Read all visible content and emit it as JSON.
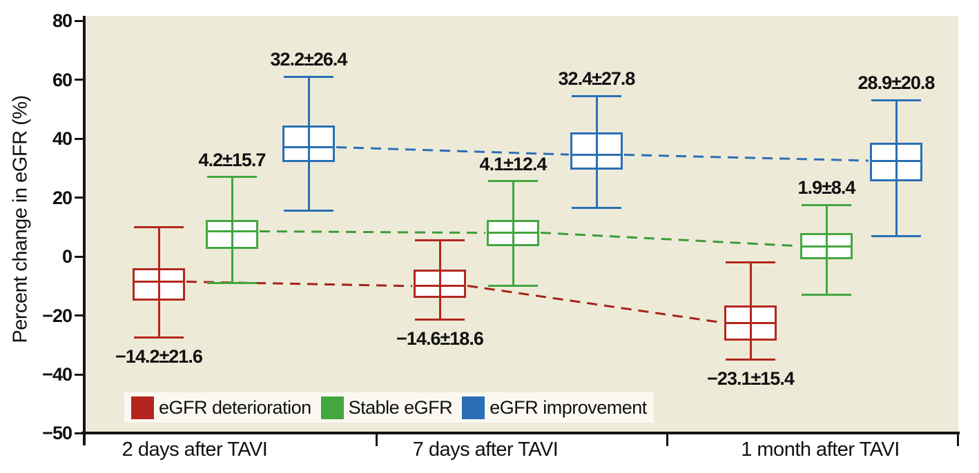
{
  "chart_data": {
    "type": "box",
    "title": "",
    "ylabel": "Percent change in eGFR (%)",
    "xlabel": "",
    "ylim": [
      -50,
      80
    ],
    "grid": false,
    "legend_position": "bottom-inside",
    "y_ticks": [
      {
        "label": "80",
        "value": 80
      },
      {
        "label": "60",
        "value": 60
      },
      {
        "label": "40",
        "value": 40
      },
      {
        "label": "20",
        "value": 20
      },
      {
        "label": "0",
        "value": 0
      },
      {
        "label": "−20",
        "value": -20
      },
      {
        "label": "−40",
        "value": -40
      },
      {
        "label": "−50",
        "value": -50
      }
    ],
    "categories": [
      "2 days after TAVI",
      "7 days after TAVI",
      "1 month after TAVI"
    ],
    "series": [
      {
        "name": "eGFR deterioration",
        "color": "#b4261d",
        "dash_color": "#a5221a",
        "label_position": "below",
        "mean_sd_labels": [
          "−14.2±21.6",
          "−14.6±18.6",
          "−23.1±15.4"
        ],
        "boxes": [
          {
            "whisker_high": 10,
            "q3": -4,
            "median": -8.5,
            "q1": -15,
            "whisker_low": -27.5
          },
          {
            "whisker_high": 5.5,
            "q3": -4.5,
            "median": -10,
            "q1": -14,
            "whisker_low": -21.5
          },
          {
            "whisker_high": -2,
            "q3": -16.5,
            "median": -22.5,
            "q1": -28.5,
            "whisker_low": -35
          }
        ]
      },
      {
        "name": "Stable eGFR",
        "color": "#43a63f",
        "dash_color": "#3d9c39",
        "label_position": "above",
        "mean_sd_labels": [
          "4.2±15.7",
          "4.1±12.4",
          "1.9±8.4"
        ],
        "boxes": [
          {
            "whisker_high": 27,
            "q3": 12.5,
            "median": 8.5,
            "q1": 2.5,
            "whisker_low": -9
          },
          {
            "whisker_high": 25.5,
            "q3": 12.5,
            "median": 8,
            "q1": 3.5,
            "whisker_low": -10
          },
          {
            "whisker_high": 17.5,
            "q3": 8,
            "median": 3.5,
            "q1": -1,
            "whisker_low": -13
          }
        ]
      },
      {
        "name": "eGFR improvement",
        "color": "#2a6fb5",
        "dash_color": "#2a6fb5",
        "label_position": "above",
        "mean_sd_labels": [
          "32.2±26.4",
          "32.4±27.8",
          "28.9±20.8"
        ],
        "boxes": [
          {
            "whisker_high": 61,
            "q3": 44.5,
            "median": 37,
            "q1": 32,
            "whisker_low": 15.5
          },
          {
            "whisker_high": 54.5,
            "q3": 42,
            "median": 34.5,
            "q1": 29.5,
            "whisker_low": 16.5
          },
          {
            "whisker_high": 53,
            "q3": 38.5,
            "median": 32.5,
            "q1": 25.5,
            "whisker_low": 7
          }
        ]
      }
    ],
    "colors": {
      "plot_background": "#edead8",
      "legend_background": "#faf8f0",
      "axis": "#141414",
      "deterioration_red": "#b4261d",
      "stable_green": "#43a63f",
      "improvement_blue": "#2a6fb5"
    }
  }
}
